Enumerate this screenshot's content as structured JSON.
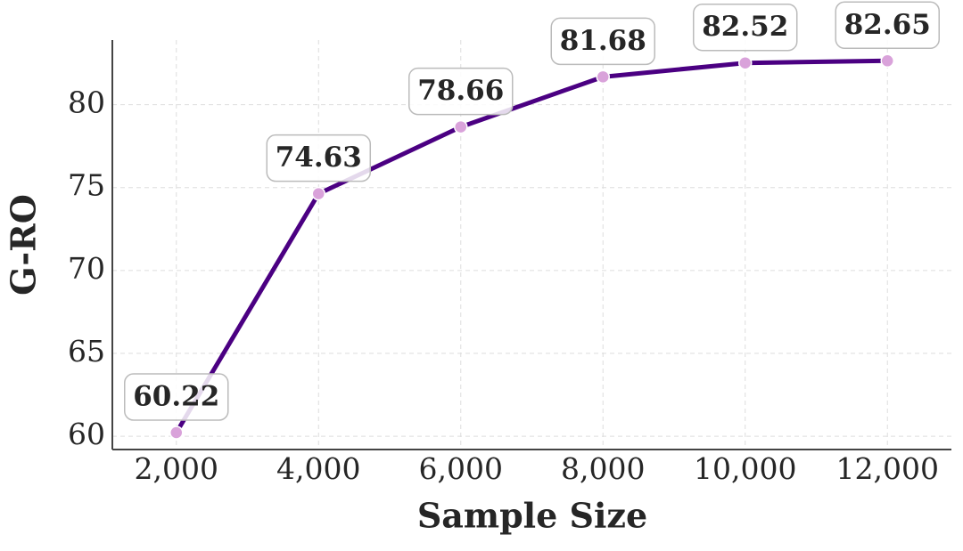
{
  "chart_data": {
    "type": "line",
    "xlabel": "Sample Size",
    "ylabel": "G-RO",
    "x": [
      2000,
      4000,
      6000,
      8000,
      10000,
      12000
    ],
    "values": [
      60.22,
      74.63,
      78.66,
      81.68,
      82.52,
      82.65
    ],
    "color": "#4b0082",
    "marker_color": "#d9a2da",
    "xlim": [
      1100,
      12900
    ],
    "ylim": [
      59.2,
      83.9
    ],
    "xticks": [
      {
        "value": 2000,
        "label": "2,000"
      },
      {
        "value": 4000,
        "label": "4,000"
      },
      {
        "value": 6000,
        "label": "6,000"
      },
      {
        "value": 8000,
        "label": "8,000"
      },
      {
        "value": 10000,
        "label": "10,000"
      },
      {
        "value": 12000,
        "label": "12,000"
      }
    ],
    "yticks": [
      60,
      65,
      70,
      75,
      80
    ],
    "grid": true
  }
}
